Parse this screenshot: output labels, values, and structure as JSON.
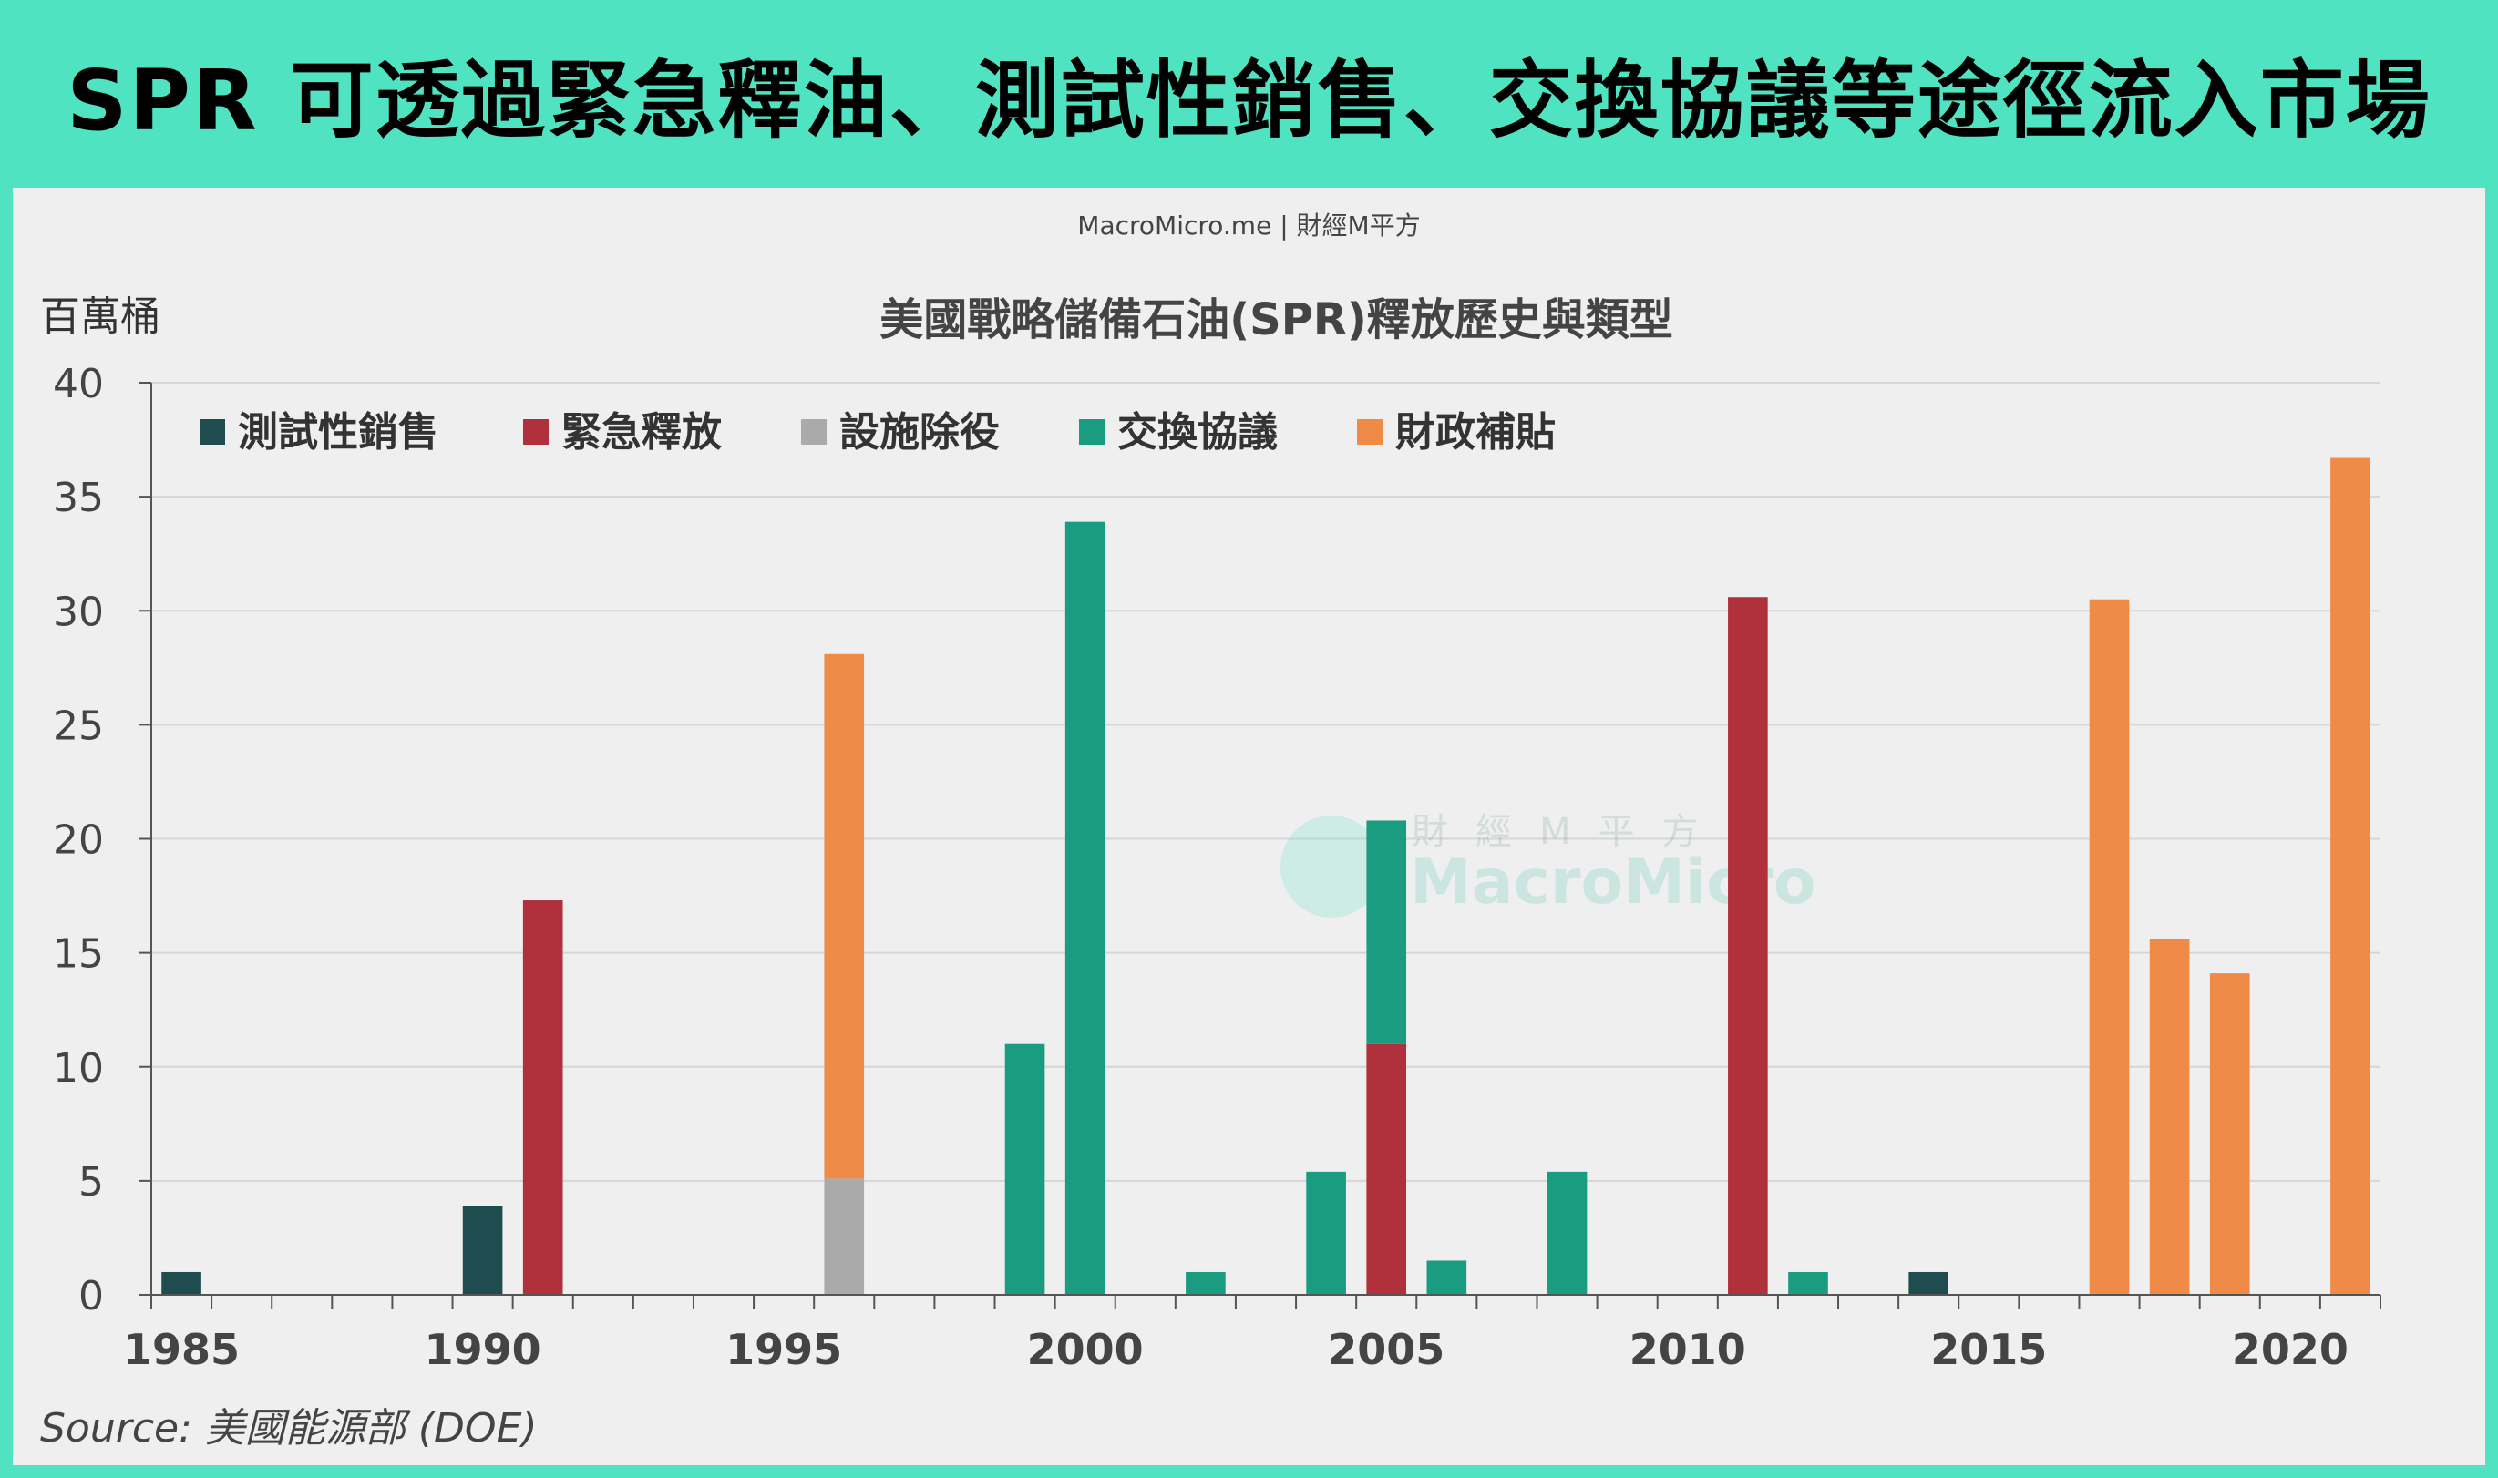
{
  "headline": "SPR 可透過緊急釋油、測試性銷售、交換協議等途徑流入市場",
  "brand": "MacroMicro.me | 財經M平方",
  "watermark": {
    "cn": "財經M平方",
    "en": "MacroMicro"
  },
  "source": "Source: 美國能源部 (DOE)",
  "colors": {
    "border": "#50e3c2",
    "panel": "#efefef"
  },
  "chart_data": {
    "type": "bar",
    "stacked": true,
    "title": "美國戰略儲備石油(SPR)釋放歷史與類型",
    "ylabel": "百萬桶",
    "xlabel": "",
    "ylim": [
      0,
      40
    ],
    "yticks": [
      0,
      5,
      10,
      15,
      20,
      25,
      30,
      35,
      40
    ],
    "xlim": [
      1984.5,
      2021.5
    ],
    "xticks": [
      1985,
      1990,
      1995,
      2000,
      2005,
      2010,
      2015,
      2020
    ],
    "legend_position": "top-left",
    "grid": true,
    "series": [
      {
        "name": "測試性銷售",
        "color": "#1f4c4f",
        "points": [
          {
            "x": 1985,
            "y": 1.0
          },
          {
            "x": 1990,
            "y": 3.9
          },
          {
            "x": 2014,
            "y": 1.0
          }
        ]
      },
      {
        "name": "緊急釋放",
        "color": "#b0303c",
        "points": [
          {
            "x": 1991,
            "y": 17.3
          },
          {
            "x": 2005,
            "y": 11.0
          },
          {
            "x": 2011,
            "y": 30.6
          }
        ]
      },
      {
        "name": "設施除役",
        "color": "#aaaaaa",
        "points": [
          {
            "x": 1996,
            "y": 5.1
          }
        ]
      },
      {
        "name": "交換協議",
        "color": "#1a9c80",
        "points": [
          {
            "x": 1999,
            "y": 11.0
          },
          {
            "x": 2000,
            "y": 33.9
          },
          {
            "x": 2002,
            "y": 1.0
          },
          {
            "x": 2004,
            "y": 5.4
          },
          {
            "x": 2005,
            "y": 9.8
          },
          {
            "x": 2006,
            "y": 1.5
          },
          {
            "x": 2008,
            "y": 5.4
          },
          {
            "x": 2012,
            "y": 1.0
          }
        ]
      },
      {
        "name": "財政補貼",
        "color": "#ef8a47",
        "points": [
          {
            "x": 1996,
            "y": 23.0
          },
          {
            "x": 2017,
            "y": 30.5
          },
          {
            "x": 2018,
            "y": 15.6
          },
          {
            "x": 2019,
            "y": 14.1
          },
          {
            "x": 2021,
            "y": 36.7
          }
        ]
      }
    ]
  }
}
